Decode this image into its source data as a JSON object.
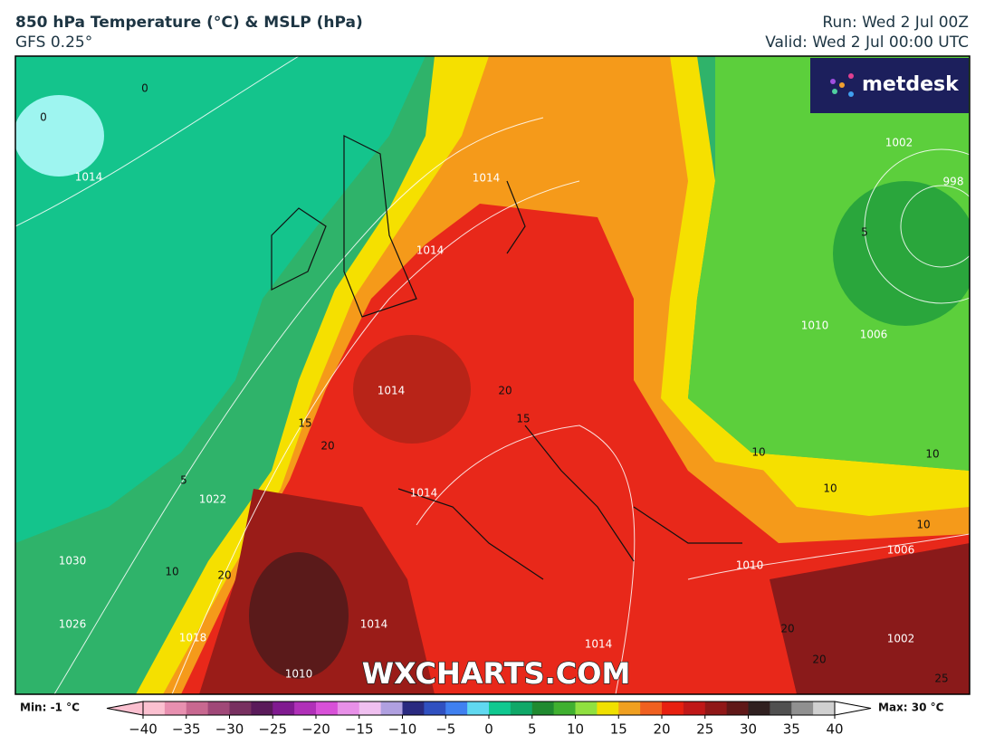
{
  "header": {
    "title": "850 hPa Temperature (°C) & MSLP (hPa)",
    "subtitle": "GFS 0.25°",
    "run": "Run: Wed 2 Jul 00Z",
    "valid": "Valid: Wed 2 Jul 00:00 UTC"
  },
  "logo": "metdesk",
  "watermark": "WXCHARTS.COM",
  "map": {
    "isobar_labels": [
      "1014",
      "1014",
      "1014",
      "1014",
      "1014",
      "1014",
      "1014",
      "1018",
      "1022",
      "1026",
      "1030",
      "1010",
      "1010",
      "1006",
      "1006",
      "1002",
      "1002",
      "998",
      "1010"
    ],
    "temperature_labels": [
      "0",
      "0",
      "5",
      "10",
      "15",
      "20",
      "20",
      "15",
      "20",
      "10",
      "10",
      "10",
      "10",
      "5",
      "20",
      "20",
      "25"
    ]
  },
  "colorbar": {
    "min_label": "Min: -1 °C",
    "max_label": "Max: 30 °C",
    "ticks": [
      {
        "value": -40,
        "label": "−40"
      },
      {
        "value": -35,
        "label": "−35"
      },
      {
        "value": -30,
        "label": "−30"
      },
      {
        "value": -25,
        "label": "−25"
      },
      {
        "value": -20,
        "label": "−20"
      },
      {
        "value": -15,
        "label": "−15"
      },
      {
        "value": -10,
        "label": "−10"
      },
      {
        "value": -5,
        "label": "−5"
      },
      0,
      5,
      10,
      15,
      20,
      25,
      30,
      35,
      40
    ],
    "colors": [
      "#fbc0d0",
      "#e890b0",
      "#c86890",
      "#a04878",
      "#783060",
      "#5a1a5a",
      "#801a90",
      "#b030b8",
      "#d850d8",
      "#e890e8",
      "#f0c0f0",
      "#b0a0e0",
      "#2a2a80",
      "#3050c0",
      "#4080f0",
      "#60d8f0",
      "#10c890",
      "#10a868",
      "#208a30",
      "#40b030",
      "#90e040",
      "#f0e000",
      "#f0a020",
      "#f06020",
      "#e82010",
      "#c01818",
      "#901818",
      "#601818",
      "#302020",
      "#505050",
      "#909090",
      "#d0d0d0"
    ]
  }
}
